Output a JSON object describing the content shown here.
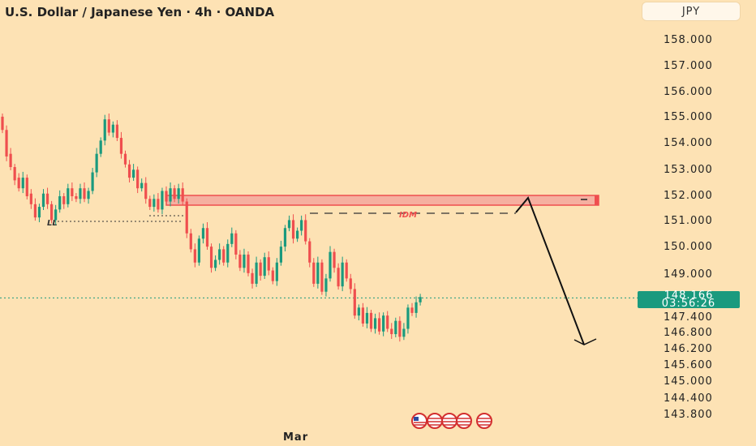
{
  "header": {
    "title": "U.S. Dollar / Japanese Yen · 4h · OANDA",
    "currency": "JPY"
  },
  "current_price": {
    "value": "148.166",
    "countdown": "03:56:26"
  },
  "chart_data": {
    "type": "candlestick",
    "title": "U.S. Dollar / Japanese Yen · 4h · OANDA",
    "xlabel": "",
    "ylabel": "",
    "x_ticks": [
      "Mar"
    ],
    "y_ticks": [
      "158.000",
      "157.000",
      "156.000",
      "155.000",
      "154.000",
      "153.000",
      "152.000",
      "151.000",
      "150.000",
      "149.000",
      "147.400",
      "146.800",
      "146.200",
      "145.600",
      "145.000",
      "144.400",
      "143.800"
    ],
    "current_price": 148.166,
    "colors": {
      "up": "#1a9a7e",
      "down": "#ef4e4e",
      "background": "#fde2b4",
      "zone": "#ef4e4e"
    },
    "annotations": [
      {
        "label": "LL",
        "price": 151.0
      },
      {
        "label": "IDM",
        "price": 151.25
      },
      {
        "label": "supply-zone",
        "from": 151.55,
        "to": 151.95
      },
      {
        "label": "projection-arrow",
        "from": 151.9,
        "to": 146.2
      }
    ],
    "candles": [
      [
        155.0,
        154.5
      ],
      [
        154.5,
        153.5
      ],
      [
        153.6,
        153.1
      ],
      [
        153.1,
        152.6
      ],
      [
        152.7,
        152.3
      ],
      [
        152.3,
        152.7
      ],
      [
        152.7,
        152.0
      ],
      [
        152.1,
        151.7
      ],
      [
        151.7,
        151.2
      ],
      [
        151.2,
        151.6
      ],
      [
        151.6,
        152.1
      ],
      [
        152.1,
        151.7
      ],
      [
        151.7,
        151.1
      ],
      [
        151.1,
        151.5
      ],
      [
        151.5,
        152.0
      ],
      [
        152.0,
        151.7
      ],
      [
        151.7,
        152.3
      ],
      [
        152.3,
        152.0
      ],
      [
        152.0,
        151.9
      ],
      [
        151.9,
        152.3
      ],
      [
        152.3,
        151.9
      ],
      [
        151.9,
        152.2
      ],
      [
        152.2,
        152.9
      ],
      [
        152.9,
        153.6
      ],
      [
        153.6,
        154.1
      ],
      [
        154.1,
        154.9
      ],
      [
        154.9,
        154.4
      ],
      [
        154.4,
        154.7
      ],
      [
        154.7,
        154.2
      ],
      [
        154.2,
        153.6
      ],
      [
        153.6,
        153.2
      ],
      [
        153.2,
        152.7
      ],
      [
        152.7,
        153.0
      ],
      [
        153.0,
        152.3
      ],
      [
        152.3,
        152.5
      ],
      [
        152.5,
        151.9
      ],
      [
        151.9,
        151.6
      ],
      [
        151.6,
        151.9
      ],
      [
        151.9,
        151.5
      ],
      [
        151.5,
        152.2
      ],
      [
        152.2,
        151.8
      ],
      [
        151.8,
        152.3
      ],
      [
        152.3,
        151.9
      ],
      [
        151.9,
        152.3
      ],
      [
        152.3,
        151.8
      ],
      [
        151.8,
        150.6
      ],
      [
        150.6,
        150.0
      ],
      [
        150.0,
        149.5
      ],
      [
        149.5,
        150.4
      ],
      [
        150.4,
        150.8
      ],
      [
        150.8,
        150.1
      ],
      [
        150.1,
        149.3
      ],
      [
        149.3,
        149.6
      ],
      [
        149.6,
        150.0
      ],
      [
        150.0,
        149.5
      ],
      [
        149.5,
        150.2
      ],
      [
        150.2,
        150.6
      ],
      [
        150.6,
        149.8
      ],
      [
        149.8,
        149.3
      ],
      [
        149.3,
        149.8
      ],
      [
        149.8,
        149.1
      ],
      [
        149.1,
        148.7
      ],
      [
        148.7,
        149.5
      ],
      [
        149.5,
        149.0
      ],
      [
        149.0,
        149.7
      ],
      [
        149.7,
        149.2
      ],
      [
        149.2,
        148.8
      ],
      [
        148.8,
        149.5
      ],
      [
        149.5,
        150.1
      ],
      [
        150.1,
        150.8
      ],
      [
        150.8,
        151.1
      ],
      [
        151.1,
        150.4
      ],
      [
        150.4,
        150.7
      ],
      [
        150.7,
        151.1
      ],
      [
        151.1,
        150.3
      ],
      [
        150.3,
        149.5
      ],
      [
        149.5,
        148.7
      ],
      [
        148.7,
        149.5
      ],
      [
        149.5,
        148.4
      ],
      [
        148.4,
        148.9
      ],
      [
        148.9,
        149.9
      ],
      [
        149.9,
        149.3
      ],
      [
        149.3,
        148.6
      ],
      [
        148.6,
        149.5
      ],
      [
        149.5,
        148.9
      ],
      [
        148.9,
        148.5
      ],
      [
        148.5,
        147.5
      ],
      [
        147.5,
        147.8
      ],
      [
        147.8,
        147.2
      ],
      [
        147.2,
        147.6
      ],
      [
        147.6,
        147.0
      ],
      [
        147.0,
        147.4
      ],
      [
        147.4,
        146.9
      ],
      [
        146.9,
        147.5
      ],
      [
        147.5,
        147.0
      ],
      [
        147.0,
        146.8
      ],
      [
        146.8,
        147.3
      ],
      [
        147.3,
        146.7
      ],
      [
        146.7,
        147.0
      ],
      [
        147.0,
        147.8
      ],
      [
        147.8,
        147.6
      ],
      [
        147.6,
        148.0
      ],
      [
        148.0,
        148.2
      ]
    ]
  }
}
